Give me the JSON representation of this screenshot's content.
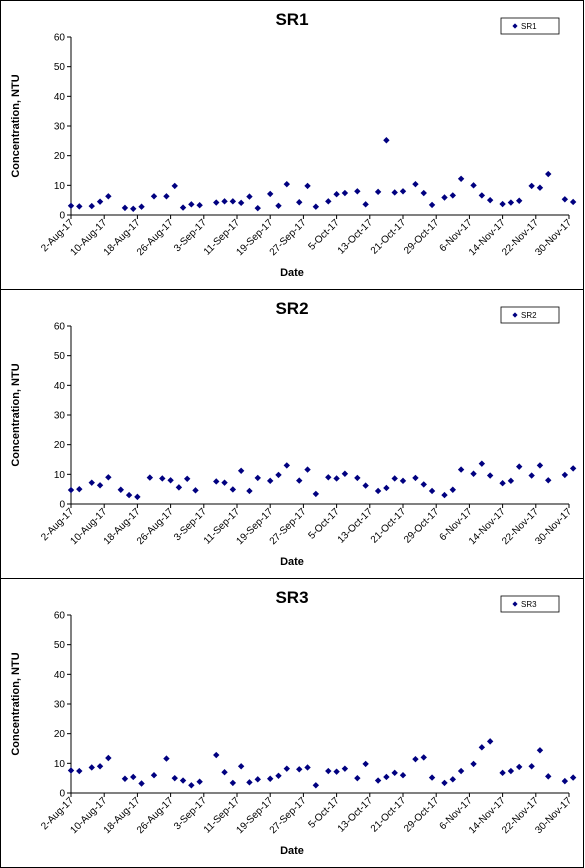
{
  "chart_data": [
    {
      "type": "scatter",
      "title": "SR1",
      "xlabel": "Date",
      "ylabel": "Concentration, NTU",
      "ylim": [
        0,
        60
      ],
      "yticks": [
        0,
        10,
        20,
        30,
        40,
        50,
        60
      ],
      "xlim": [
        "2-Aug-17",
        "30-Nov-17"
      ],
      "xticks": [
        "2-Aug-17",
        "10-Aug-17",
        "18-Aug-17",
        "26-Aug-17",
        "3-Sep-17",
        "11-Sep-17",
        "19-Sep-17",
        "27-Sep-17",
        "5-Oct-17",
        "13-Oct-17",
        "21-Oct-17",
        "29-Oct-17",
        "6-Nov-17",
        "14-Nov-17",
        "22-Nov-17",
        "30-Nov-17"
      ],
      "grid": false,
      "legend": "top-right",
      "marker_color": "#000080",
      "series": [
        {
          "name": "SR1",
          "points": [
            [
              "2-Aug-17",
              3.1
            ],
            [
              "4-Aug-17",
              2.9
            ],
            [
              "7-Aug-17",
              3.0
            ],
            [
              "9-Aug-17",
              4.5
            ],
            [
              "11-Aug-17",
              6.3
            ],
            [
              "15-Aug-17",
              2.4
            ],
            [
              "17-Aug-17",
              2.1
            ],
            [
              "19-Aug-17",
              2.8
            ],
            [
              "22-Aug-17",
              6.3
            ],
            [
              "25-Aug-17",
              6.3
            ],
            [
              "27-Aug-17",
              9.8
            ],
            [
              "29-Aug-17",
              2.5
            ],
            [
              "31-Aug-17",
              3.6
            ],
            [
              "2-Sep-17",
              3.3
            ],
            [
              "6-Sep-17",
              4.2
            ],
            [
              "8-Sep-17",
              4.6
            ],
            [
              "10-Sep-17",
              4.6
            ],
            [
              "12-Sep-17",
              4.1
            ],
            [
              "14-Sep-17",
              6.2
            ],
            [
              "16-Sep-17",
              2.3
            ],
            [
              "19-Sep-17",
              7.1
            ],
            [
              "21-Sep-17",
              3.1
            ],
            [
              "23-Sep-17",
              10.4
            ],
            [
              "26-Sep-17",
              4.3
            ],
            [
              "28-Sep-17",
              9.8
            ],
            [
              "30-Sep-17",
              2.8
            ],
            [
              "3-Oct-17",
              4.6
            ],
            [
              "5-Oct-17",
              7.0
            ],
            [
              "7-Oct-17",
              7.4
            ],
            [
              "10-Oct-17",
              8.0
            ],
            [
              "12-Oct-17",
              3.6
            ],
            [
              "15-Oct-17",
              7.8
            ],
            [
              "17-Oct-17",
              25.2
            ],
            [
              "19-Oct-17",
              7.6
            ],
            [
              "21-Oct-17",
              8.0
            ],
            [
              "24-Oct-17",
              10.4
            ],
            [
              "26-Oct-17",
              7.4
            ],
            [
              "28-Oct-17",
              3.4
            ],
            [
              "31-Oct-17",
              5.9
            ],
            [
              "2-Nov-17",
              6.6
            ],
            [
              "4-Nov-17",
              12.2
            ],
            [
              "7-Nov-17",
              10.0
            ],
            [
              "9-Nov-17",
              6.6
            ],
            [
              "11-Nov-17",
              5.0
            ],
            [
              "14-Nov-17",
              3.7
            ],
            [
              "16-Nov-17",
              4.2
            ],
            [
              "18-Nov-17",
              4.8
            ],
            [
              "21-Nov-17",
              9.8
            ],
            [
              "23-Nov-17",
              9.2
            ],
            [
              "25-Nov-17",
              13.8
            ],
            [
              "29-Nov-17",
              5.3
            ],
            [
              "1-Dec-17",
              4.4
            ]
          ]
        }
      ]
    },
    {
      "type": "scatter",
      "title": "SR2",
      "xlabel": "Date",
      "ylabel": "Concentration, NTU",
      "ylim": [
        0,
        60
      ],
      "yticks": [
        0,
        10,
        20,
        30,
        40,
        50,
        60
      ],
      "xlim": [
        "2-Aug-17",
        "30-Nov-17"
      ],
      "xticks": [
        "2-Aug-17",
        "10-Aug-17",
        "18-Aug-17",
        "26-Aug-17",
        "3-Sep-17",
        "11-Sep-17",
        "19-Sep-17",
        "27-Sep-17",
        "5-Oct-17",
        "13-Oct-17",
        "21-Oct-17",
        "29-Oct-17",
        "6-Nov-17",
        "14-Nov-17",
        "22-Nov-17",
        "30-Nov-17"
      ],
      "grid": false,
      "legend": "top-right",
      "marker_color": "#000080",
      "series": [
        {
          "name": "SR2",
          "points": [
            [
              "2-Aug-17",
              4.7
            ],
            [
              "4-Aug-17",
              5.0
            ],
            [
              "7-Aug-17",
              7.2
            ],
            [
              "9-Aug-17",
              6.3
            ],
            [
              "11-Aug-17",
              9.0
            ],
            [
              "14-Aug-17",
              4.8
            ],
            [
              "16-Aug-17",
              3.0
            ],
            [
              "18-Aug-17",
              2.4
            ],
            [
              "21-Aug-17",
              8.9
            ],
            [
              "24-Aug-17",
              8.6
            ],
            [
              "26-Aug-17",
              8.0
            ],
            [
              "28-Aug-17",
              5.6
            ],
            [
              "30-Aug-17",
              8.5
            ],
            [
              "1-Sep-17",
              4.6
            ],
            [
              "6-Sep-17",
              7.6
            ],
            [
              "8-Sep-17",
              7.2
            ],
            [
              "10-Sep-17",
              4.9
            ],
            [
              "12-Sep-17",
              11.2
            ],
            [
              "14-Sep-17",
              4.4
            ],
            [
              "16-Sep-17",
              8.8
            ],
            [
              "19-Sep-17",
              7.8
            ],
            [
              "21-Sep-17",
              9.8
            ],
            [
              "23-Sep-17",
              13.0
            ],
            [
              "26-Sep-17",
              7.9
            ],
            [
              "28-Sep-17",
              11.6
            ],
            [
              "30-Sep-17",
              3.4
            ],
            [
              "3-Oct-17",
              9.0
            ],
            [
              "5-Oct-17",
              8.6
            ],
            [
              "7-Oct-17",
              10.2
            ],
            [
              "10-Oct-17",
              8.8
            ],
            [
              "12-Oct-17",
              6.2
            ],
            [
              "15-Oct-17",
              4.4
            ],
            [
              "17-Oct-17",
              5.4
            ],
            [
              "19-Oct-17",
              8.6
            ],
            [
              "21-Oct-17",
              7.8
            ],
            [
              "24-Oct-17",
              8.8
            ],
            [
              "26-Oct-17",
              6.6
            ],
            [
              "28-Oct-17",
              4.4
            ],
            [
              "31-Oct-17",
              3.0
            ],
            [
              "2-Nov-17",
              4.8
            ],
            [
              "4-Nov-17",
              11.6
            ],
            [
              "7-Nov-17",
              10.2
            ],
            [
              "9-Nov-17",
              13.6
            ],
            [
              "11-Nov-17",
              9.6
            ],
            [
              "14-Nov-17",
              7.0
            ],
            [
              "16-Nov-17",
              7.8
            ],
            [
              "18-Nov-17",
              12.6
            ],
            [
              "21-Nov-17",
              9.6
            ],
            [
              "23-Nov-17",
              13.0
            ],
            [
              "25-Nov-17",
              8.0
            ],
            [
              "29-Nov-17",
              9.8
            ],
            [
              "1-Dec-17",
              12.0
            ]
          ]
        }
      ]
    },
    {
      "type": "scatter",
      "title": "SR3",
      "xlabel": "Date",
      "ylabel": "Concentration, NTU",
      "ylim": [
        0,
        60
      ],
      "yticks": [
        0,
        10,
        20,
        30,
        40,
        50,
        60
      ],
      "xlim": [
        "2-Aug-17",
        "30-Nov-17"
      ],
      "xticks": [
        "2-Aug-17",
        "10-Aug-17",
        "18-Aug-17",
        "26-Aug-17",
        "3-Sep-17",
        "11-Sep-17",
        "19-Sep-17",
        "27-Sep-17",
        "5-Oct-17",
        "13-Oct-17",
        "21-Oct-17",
        "29-Oct-17",
        "6-Nov-17",
        "14-Nov-17",
        "22-Nov-17",
        "30-Nov-17"
      ],
      "grid": false,
      "legend": "top-right",
      "marker_color": "#000080",
      "series": [
        {
          "name": "SR3",
          "points": [
            [
              "2-Aug-17",
              7.6
            ],
            [
              "4-Aug-17",
              7.4
            ],
            [
              "7-Aug-17",
              8.6
            ],
            [
              "9-Aug-17",
              9.0
            ],
            [
              "11-Aug-17",
              11.8
            ],
            [
              "15-Aug-17",
              4.8
            ],
            [
              "17-Aug-17",
              5.4
            ],
            [
              "19-Aug-17",
              3.2
            ],
            [
              "22-Aug-17",
              6.0
            ],
            [
              "25-Aug-17",
              11.6
            ],
            [
              "27-Aug-17",
              5.0
            ],
            [
              "29-Aug-17",
              4.2
            ],
            [
              "31-Aug-17",
              2.6
            ],
            [
              "2-Sep-17",
              3.8
            ],
            [
              "6-Sep-17",
              12.8
            ],
            [
              "8-Sep-17",
              7.0
            ],
            [
              "10-Sep-17",
              3.4
            ],
            [
              "12-Sep-17",
              9.0
            ],
            [
              "14-Sep-17",
              3.6
            ],
            [
              "16-Sep-17",
              4.6
            ],
            [
              "19-Sep-17",
              4.8
            ],
            [
              "21-Sep-17",
              5.8
            ],
            [
              "23-Sep-17",
              8.2
            ],
            [
              "26-Sep-17",
              8.0
            ],
            [
              "28-Sep-17",
              8.6
            ],
            [
              "30-Sep-17",
              2.6
            ],
            [
              "3-Oct-17",
              7.4
            ],
            [
              "5-Oct-17",
              7.2
            ],
            [
              "7-Oct-17",
              8.2
            ],
            [
              "10-Oct-17",
              5.0
            ],
            [
              "12-Oct-17",
              9.8
            ],
            [
              "15-Oct-17",
              4.2
            ],
            [
              "17-Oct-17",
              5.4
            ],
            [
              "19-Oct-17",
              6.8
            ],
            [
              "21-Oct-17",
              6.0
            ],
            [
              "24-Oct-17",
              11.4
            ],
            [
              "26-Oct-17",
              12.0
            ],
            [
              "28-Oct-17",
              5.2
            ],
            [
              "31-Oct-17",
              3.4
            ],
            [
              "2-Nov-17",
              4.6
            ],
            [
              "4-Nov-17",
              7.4
            ],
            [
              "7-Nov-17",
              9.8
            ],
            [
              "9-Nov-17",
              15.4
            ],
            [
              "11-Nov-17",
              17.4
            ],
            [
              "14-Nov-17",
              6.8
            ],
            [
              "16-Nov-17",
              7.4
            ],
            [
              "18-Nov-17",
              8.8
            ],
            [
              "21-Nov-17",
              9.0
            ],
            [
              "23-Nov-17",
              14.4
            ],
            [
              "25-Nov-17",
              5.6
            ],
            [
              "29-Nov-17",
              4.0
            ],
            [
              "1-Dec-17",
              5.2
            ]
          ]
        }
      ]
    }
  ]
}
